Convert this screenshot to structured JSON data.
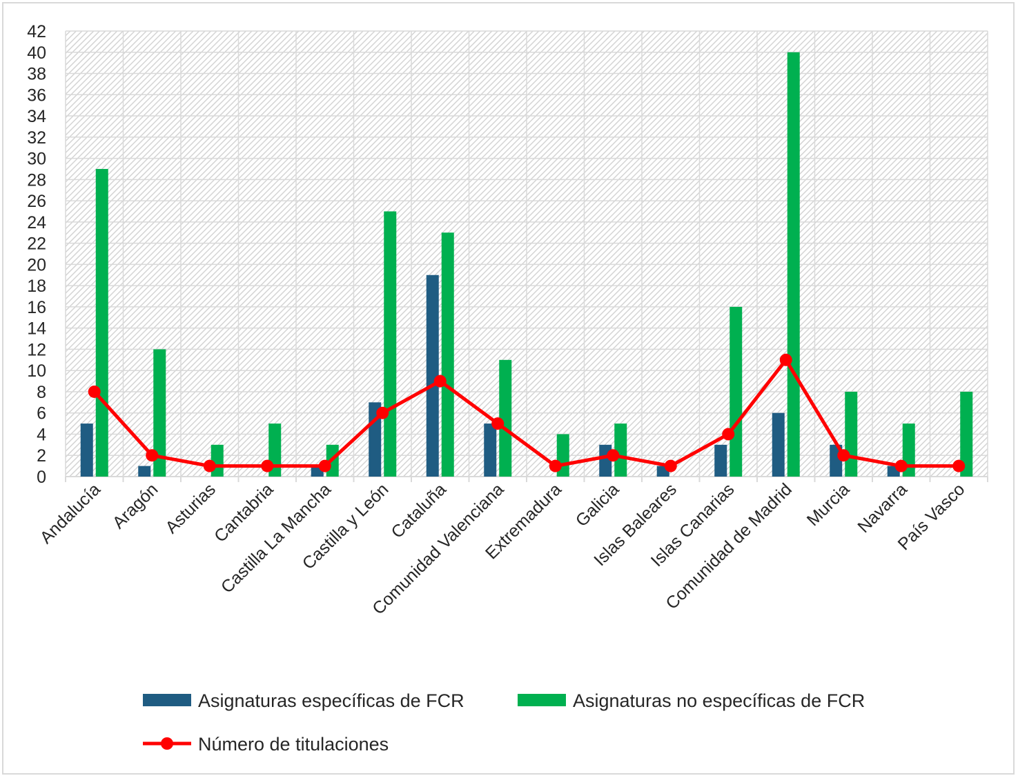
{
  "chart_data": {
    "type": "bar",
    "categories": [
      "Andalucía",
      "Aragón",
      "Asturias",
      "Cantabria",
      "Castilla La Mancha",
      "Castilla y León",
      "Cataluña",
      "Comunidad Valenciana",
      "Extremadura",
      "Galicia",
      "Islas Baleares",
      "Islas Canarias",
      "Comunidad de Madrid",
      "Murcia",
      "Navarra",
      "País Vasco"
    ],
    "series": [
      {
        "name": "Asignaturas específicas de FCR",
        "kind": "bar",
        "color": "#1f5c82",
        "values": [
          5,
          1,
          0,
          0,
          1,
          7,
          19,
          5,
          0,
          3,
          1,
          3,
          6,
          3,
          1,
          0
        ]
      },
      {
        "name": "Asignaturas no específicas de FCR",
        "kind": "bar",
        "color": "#00b050",
        "values": [
          29,
          12,
          3,
          5,
          3,
          25,
          23,
          11,
          4,
          5,
          0,
          16,
          40,
          8,
          5,
          8
        ]
      },
      {
        "name": "Número de titulaciones",
        "kind": "line",
        "color": "#ff0000",
        "values": [
          8,
          2,
          1,
          1,
          1,
          6,
          9,
          5,
          1,
          2,
          1,
          4,
          11,
          2,
          1,
          1
        ]
      }
    ],
    "ylim": [
      0,
      42
    ],
    "yticks": [
      0,
      2,
      4,
      6,
      8,
      10,
      12,
      14,
      16,
      18,
      20,
      22,
      24,
      26,
      28,
      30,
      32,
      34,
      36,
      38,
      40,
      42
    ],
    "grid": true,
    "legend_position": "bottom"
  }
}
